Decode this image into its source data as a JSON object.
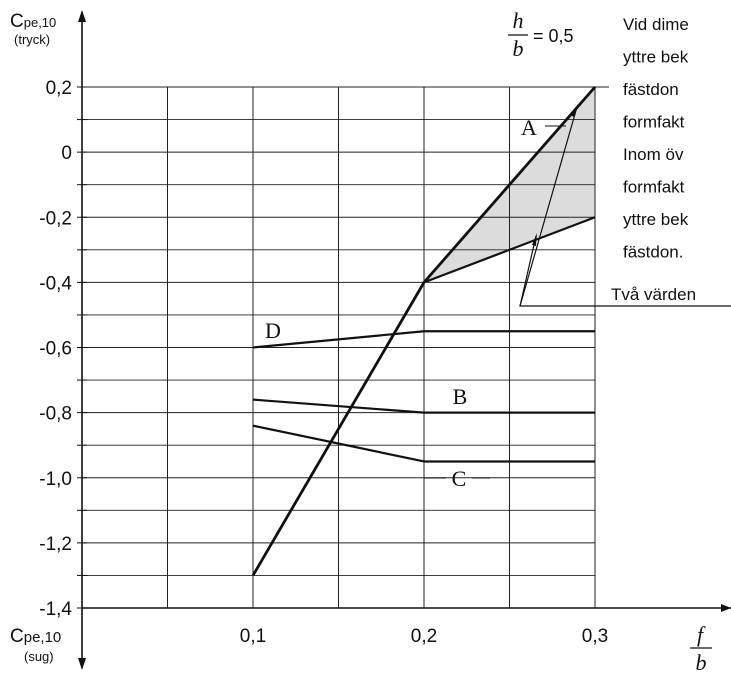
{
  "chart_data": {
    "type": "line",
    "x_ticks": [
      "0,1",
      "0,2",
      "0,3"
    ],
    "y_ticks": [
      "0,2",
      "0",
      "-0,2",
      "-0,4",
      "-0,6",
      "-0,8",
      "-1,0",
      "-1,2",
      "-1,4"
    ],
    "xlim": [
      0,
      0.3
    ],
    "ylim": [
      -1.4,
      0.25
    ],
    "grid": true,
    "series": [
      {
        "name": "A",
        "x": [
          0.1,
          0.2,
          0.3
        ],
        "y": [
          -1.3,
          -0.4,
          0.2
        ]
      },
      {
        "name": "",
        "x": [
          0.2,
          0.3
        ],
        "y": [
          -0.4,
          -0.2
        ]
      },
      {
        "name": "D",
        "x": [
          0.1,
          0.2,
          0.3
        ],
        "y": [
          -0.6,
          -0.55,
          -0.55
        ]
      },
      {
        "name": "B",
        "x": [
          0.1,
          0.2,
          0.3
        ],
        "y": [
          -0.76,
          -0.8,
          -0.8
        ]
      },
      {
        "name": "C",
        "x": [
          0.1,
          0.2,
          0.3
        ],
        "y": [
          -0.84,
          -0.95,
          -0.95
        ]
      }
    ],
    "shaded_region": {
      "x": [
        0.2,
        0.3,
        0.3
      ],
      "y": [
        -0.4,
        0.2,
        -0.2
      ]
    },
    "y_label_top": {
      "main": "C",
      "sub": "pe,10",
      "note": "(tryck)"
    },
    "y_label_bottom": {
      "main": "C",
      "sub": "pe,10",
      "note": "(sug)"
    },
    "x_label": {
      "numerator": "f",
      "denominator": "b"
    },
    "ratio_annotation": {
      "numerator": "h",
      "denominator": "b",
      "value": "= 0,5"
    },
    "callout_text": "Två värden",
    "side_note_lines": [
      "Vid dime",
      "yttre bek",
      "fästdon",
      "formfakt",
      "Inom öv",
      "formfakt",
      "yttre bek",
      "fästdon."
    ],
    "colors": {
      "line": "#111111",
      "grid": "#222222",
      "shade": "#dcdcdc"
    }
  }
}
